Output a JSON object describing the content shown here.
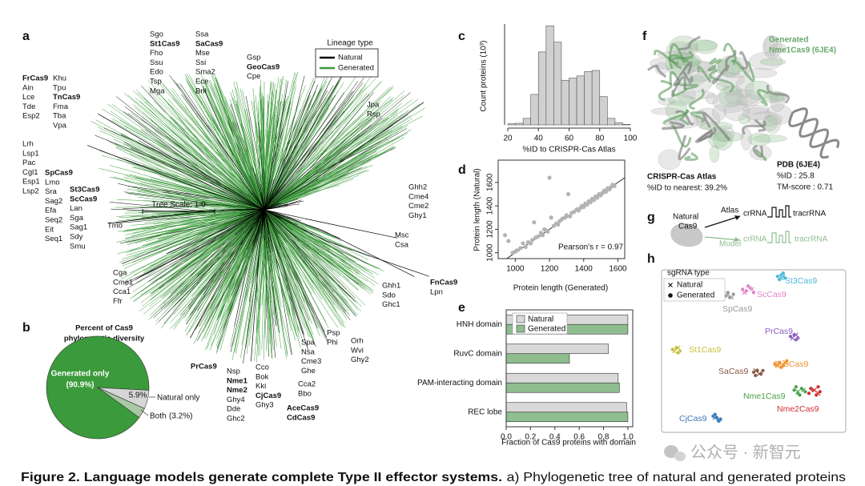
{
  "panels": [
    "a",
    "b",
    "c",
    "d",
    "e",
    "f",
    "g",
    "h"
  ],
  "tree": {
    "legend_title": "Lineage type",
    "legend": [
      {
        "name": "Natural",
        "color": "#000000"
      },
      {
        "name": "Generated",
        "color": "#3b9a3b"
      }
    ],
    "scale_label": "Tree Scale: 1.0",
    "groups": [
      {
        "labels": [
          "Sgo",
          "St1Cas9",
          "Fho",
          "Ssu",
          "Edo",
          "Tsp",
          "Mga"
        ],
        "bold": [
          1
        ]
      },
      {
        "labels": [
          "Ssa",
          "SaCas9",
          "Mse",
          "Ssi",
          "Sma2",
          "Ece",
          "Bni"
        ],
        "bold": [
          1
        ]
      },
      {
        "labels": [
          "Gsp",
          "GeoCas9",
          "Cpe"
        ],
        "bold": [
          1
        ]
      },
      {
        "labels": [
          "FrCas9",
          "Ain",
          "Lce",
          "Tde",
          "Esp2"
        ],
        "bold": [
          0
        ]
      },
      {
        "labels": [
          "Khu",
          "Tpu",
          "TnCas9",
          "Fma",
          "Tba",
          "Vpa"
        ],
        "bold": [
          2
        ]
      },
      {
        "labels": [
          "Jpa",
          "Rsp"
        ],
        "bold": []
      },
      {
        "labels": [
          "Lrh",
          "Lsp1",
          "Pac",
          "Cgl1",
          "Esp1",
          "Lsp2"
        ],
        "bold": []
      },
      {
        "labels": [
          "SpCas9",
          "Lmo",
          "Sra",
          "Sag2",
          "Efa",
          "Seq2",
          "Eit",
          "Seq1"
        ],
        "bold": [
          0
        ]
      },
      {
        "labels": [
          "St3Cas9",
          "ScCas9",
          "Lan",
          "Sga",
          "Sag1",
          "Sdy",
          "Smu"
        ],
        "bold": [
          0,
          1
        ]
      },
      {
        "labels": [
          "Ghh2",
          "Cme4",
          "Cme2",
          "Ghy1"
        ],
        "bold": []
      },
      {
        "labels": [
          "Tmo"
        ],
        "bold": []
      },
      {
        "labels": [
          "Msc",
          "Csa"
        ],
        "bold": []
      },
      {
        "labels": [
          "Cga",
          "Cme1",
          "Cca1",
          "Ffr"
        ],
        "bold": []
      },
      {
        "labels": [
          "FnCas9",
          "Lpn"
        ],
        "bold": [
          0
        ]
      },
      {
        "labels": [
          "Ghh1",
          "Sdo",
          "Ghc1"
        ],
        "bold": []
      },
      {
        "labels": [
          "Spa",
          "Nsa",
          "Cme3",
          "Ghe"
        ],
        "bold": []
      },
      {
        "labels": [
          "Psp",
          "Phi"
        ],
        "bold": []
      },
      {
        "labels": [
          "Orh",
          "Wvi",
          "Ghy2"
        ],
        "bold": []
      },
      {
        "labels": [
          "PrCas9"
        ],
        "bold": [
          0
        ]
      },
      {
        "labels": [
          "Nsp",
          "Nme1",
          "Nme2",
          "Ghy4",
          "Dde",
          "Ghc2"
        ],
        "bold": [
          1,
          2
        ]
      },
      {
        "labels": [
          "Cco",
          "Bok",
          "Kki",
          "CjCas9",
          "Ghy3"
        ],
        "bold": [
          3
        ]
      },
      {
        "labels": [
          "Cca2",
          "Bbo"
        ],
        "bold": []
      },
      {
        "labels": [
          "AceCas9",
          "CdCas9"
        ],
        "bold": [
          0,
          1
        ]
      }
    ]
  },
  "chart_data": [
    {
      "type": "pie",
      "title": [
        "Percent of Cas9",
        "phylogenetic diversity"
      ],
      "categories": [
        "Generated only",
        "Natural only",
        "Both"
      ],
      "values": [
        90.9,
        5.9,
        3.2
      ],
      "value_labels": [
        "(90.9%)",
        "5.9%",
        "(3.2%)"
      ],
      "colors": [
        "#3b9a3b",
        "#d6d6d6",
        "#a9c9a4"
      ]
    },
    {
      "type": "histogram",
      "xlabel": "%ID to CRISPR-Cas Atlas",
      "ylabel": "Count proteins (10³)",
      "bins": [
        20,
        25,
        30,
        35,
        40,
        45,
        50,
        55,
        60,
        65,
        70,
        75,
        80,
        85,
        90,
        95,
        100
      ],
      "counts": [
        0.1,
        0.15,
        0.6,
        2.8,
        6.7,
        9.1,
        7.6,
        4.1,
        4.3,
        4.5,
        4.9,
        5.0,
        2.6,
        0.6,
        0.2,
        0.05
      ],
      "color": "#d0d0d0",
      "xlim": [
        20,
        100
      ],
      "ylim": [
        0,
        10
      ],
      "xticks": [
        20,
        40,
        60,
        80,
        100
      ]
    },
    {
      "type": "scatter",
      "xlabel": "Protein length (Generated)",
      "ylabel": "Protein length (Natural)",
      "annotation": "Pearson's r = 0.97",
      "color": "#b3b3b3",
      "x": [
        940,
        960,
        985,
        1000,
        1010,
        1030,
        1045,
        1060,
        1075,
        1090,
        1100,
        1110,
        1120,
        1135,
        1150,
        1160,
        1170,
        1180,
        1190,
        1200,
        1210,
        1225,
        1240,
        1250,
        1260,
        1275,
        1290,
        1300,
        1310,
        1320,
        1330,
        1345,
        1360,
        1370,
        1380,
        1390,
        1400,
        1410,
        1420,
        1430,
        1440,
        1450,
        1460,
        1470,
        1480,
        1490,
        1500,
        1510,
        1520,
        1530,
        1540,
        1550,
        1560,
        1570,
        1580
      ],
      "y": [
        1150,
        1100,
        1000,
        1010,
        1020,
        1040,
        1080,
        1050,
        1090,
        1080,
        1110,
        1260,
        1130,
        1140,
        1170,
        1150,
        1200,
        1190,
        1180,
        1640,
        1300,
        1230,
        1250,
        1240,
        1270,
        1290,
        1300,
        1320,
        1500,
        1310,
        1340,
        1350,
        1370,
        1360,
        1380,
        1400,
        1390,
        1420,
        1410,
        1440,
        1430,
        1460,
        1450,
        1480,
        1470,
        1500,
        1490,
        1510,
        1530,
        1520,
        1550,
        1540,
        1560,
        1580,
        1570
      ],
      "xlim": [
        900,
        1640
      ],
      "ylim": [
        950,
        1790
      ],
      "xticks": [
        1000,
        1200,
        1400,
        1600
      ],
      "yticks": [
        1000,
        1200,
        1400,
        1600
      ]
    },
    {
      "type": "barh",
      "xlabel": "Fraction of Cas9 proteins with domain",
      "categories": [
        "HNH domain",
        "RuvC domain",
        "PAM-interacting domain",
        "REC lobe"
      ],
      "series": [
        {
          "name": "Natural",
          "color": "#d9d9d9",
          "values": [
            1.0,
            0.84,
            0.92,
            0.99
          ]
        },
        {
          "name": "Generated",
          "color": "#8fbd8f",
          "values": [
            1.0,
            0.52,
            0.93,
            1.0
          ]
        }
      ],
      "xlim": [
        0,
        1.04
      ],
      "xticks": [
        {
          "value": 0,
          "label": "0.0"
        },
        {
          "value": 0.2,
          "label": "0.2"
        },
        {
          "value": 0.4,
          "label": "0.4"
        },
        {
          "value": 0.6,
          "label": "0.6"
        },
        {
          "value": 0.8,
          "label": "0.8"
        },
        {
          "value": 1,
          "label": "1.0"
        }
      ]
    },
    {
      "type": "cluster_scatter",
      "legend_title": "sgRNA type",
      "markers": [
        "Natural",
        "Generated"
      ],
      "xlim": [
        0,
        100
      ],
      "ylim": [
        0,
        100
      ],
      "series": [
        {
          "name": "St3Cas9",
          "color": "#4fb8d8",
          "natural": {
            "x": [
              65,
              66
            ],
            "y": [
              95,
              96
            ]
          },
          "generated": {
            "x": [
              63,
              65,
              67,
              64,
              66
            ],
            "y": [
              96,
              97,
              95,
              94,
              98
            ]
          }
        },
        {
          "name": "ScCas9",
          "color": "#e083c8",
          "natural": {
            "x": [
              45,
              49
            ],
            "y": [
              86,
              88
            ]
          },
          "generated": {
            "x": [
              44,
              46,
              48,
              50,
              47
            ],
            "y": [
              88,
              87,
              89,
              86,
              90
            ]
          }
        },
        {
          "name": "SpCas9",
          "color": "#9a9a9a",
          "natural": {
            "x": [
              36,
              38
            ],
            "y": [
              85,
              83
            ]
          },
          "generated": {
            "x": [
              35,
              37,
              39,
              36
            ],
            "y": [
              84,
              83,
              85,
              86
            ]
          }
        },
        {
          "name": "PrCas9",
          "color": "#8e5cc0",
          "natural": {
            "x": [
              71,
              73
            ],
            "y": [
              58,
              60
            ]
          },
          "generated": {
            "x": [
              70,
              72,
              74,
              73
            ],
            "y": [
              59,
              60,
              58,
              57
            ]
          }
        },
        {
          "name": "St1Cas9",
          "color": "#c8bf3c",
          "natural": {
            "x": [
              7,
              9
            ],
            "y": [
              50,
              52
            ]
          },
          "generated": {
            "x": [
              6,
              8,
              10,
              9
            ],
            "y": [
              51,
              52,
              50,
              49
            ]
          }
        },
        {
          "name": "GeoCas9",
          "color": "#f0922e",
          "natural": {
            "x": [
              63,
              67
            ],
            "y": [
              41,
              43
            ]
          },
          "generated": {
            "x": [
              62,
              64,
              66,
              68,
              65
            ],
            "y": [
              42,
              43,
              41,
              44,
              40
            ]
          }
        },
        {
          "name": "SaCas9",
          "color": "#8a5a4a",
          "natural": {
            "x": [
              53,
              51
            ],
            "y": [
              36,
              38
            ]
          },
          "generated": {
            "x": [
              50,
              52,
              54,
              51,
              55
            ],
            "y": [
              37,
              38,
              36,
              35,
              38
            ]
          }
        },
        {
          "name": "Nme1Cas9",
          "color": "#4aa04a",
          "natural": {
            "x": [
              74,
              77
            ],
            "y": [
              25,
              26
            ]
          },
          "generated": {
            "x": [
              72,
              74,
              76,
              78,
              75,
              73
            ],
            "y": [
              26,
              24,
              27,
              25,
              23,
              28
            ]
          }
        },
        {
          "name": "Nme2Cas9",
          "color": "#d03030",
          "natural": {
            "x": [
              83,
              85
            ],
            "y": [
              26,
              24
            ]
          },
          "generated": {
            "x": [
              80,
              82,
              84,
              86,
              81,
              85
            ],
            "y": [
              24,
              26,
              23,
              25,
              27,
              28
            ]
          }
        },
        {
          "name": "CjCas9",
          "color": "#3a78b8",
          "natural": {
            "x": [
              29,
              31
            ],
            "y": [
              9,
              8
            ]
          },
          "generated": {
            "x": [
              28,
              30,
              32,
              31,
              29
            ],
            "y": [
              10,
              9,
              8,
              7,
              11
            ]
          }
        }
      ]
    }
  ],
  "structure": {
    "generated_label": [
      "Generated",
      "Nme1Cas9 (6JE4)"
    ],
    "pdb": [
      "PDB (6JE4)",
      "%ID : 25.8",
      "TM-score : 0.71"
    ],
    "atlas": [
      "CRISPR-Cas Atlas",
      "%ID to nearest: 39.2%"
    ]
  },
  "diagram": {
    "source": [
      "Natural",
      "Cas9"
    ],
    "atlas": "Atlas",
    "model": "Model",
    "crrna": "crRNA",
    "tracrrna": "tracrRNA"
  },
  "caption": {
    "bold": "Figure 2. Language models generate complete Type II effector systems.",
    "text": "a) Phylogenetic tree of natural and generated proteins"
  },
  "watermark": "公众号 · 新智元"
}
